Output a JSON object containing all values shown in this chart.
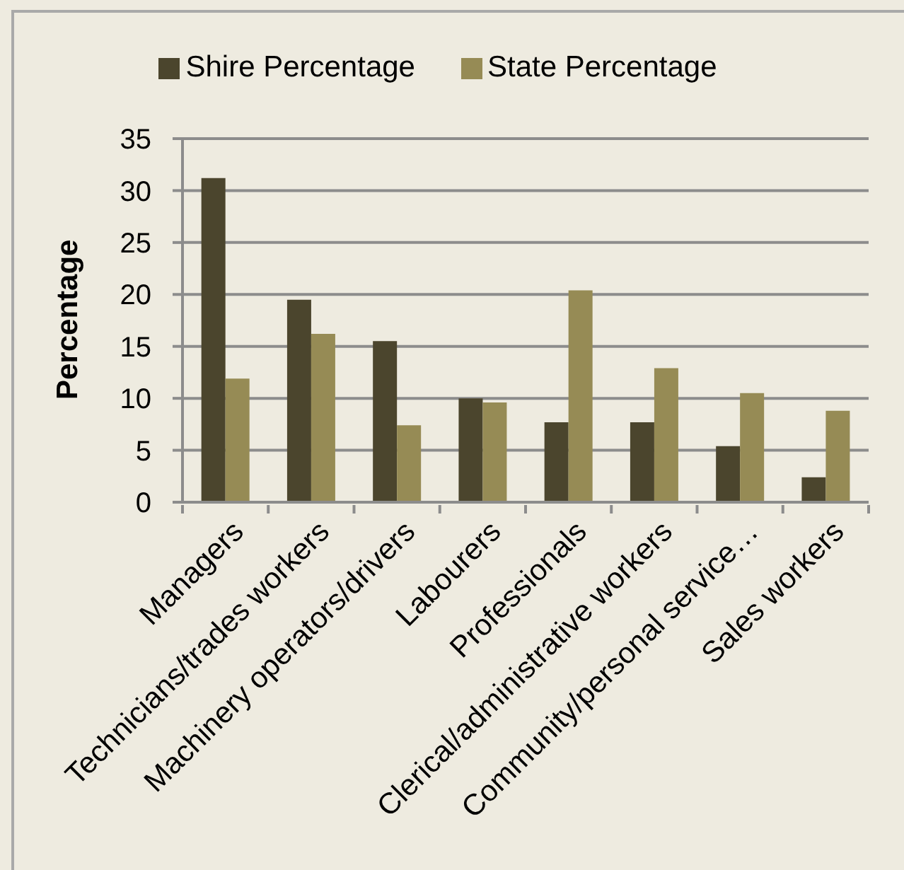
{
  "chart_data": {
    "type": "bar",
    "categories": [
      "Managers",
      "Technicians/trades workers",
      "Machinery operators/drivers",
      "Labourers",
      "Professionals",
      "Clerical/administrative workers",
      "Community/personal service…",
      "Sales workers"
    ],
    "series": [
      {
        "name": "Shire Percentage",
        "color": "#4b452d",
        "values": [
          31.2,
          19.5,
          15.5,
          10.0,
          7.7,
          7.7,
          5.4,
          2.4
        ]
      },
      {
        "name": "State Percentage",
        "color": "#968b55",
        "values": [
          11.9,
          16.2,
          7.4,
          9.6,
          20.4,
          12.9,
          10.5,
          8.8
        ]
      }
    ],
    "ylabel": "Percentage",
    "ylim": [
      0,
      35
    ],
    "yticks": [
      0,
      5,
      10,
      15,
      20,
      25,
      30,
      35
    ],
    "grid": "y",
    "legend": "top"
  }
}
